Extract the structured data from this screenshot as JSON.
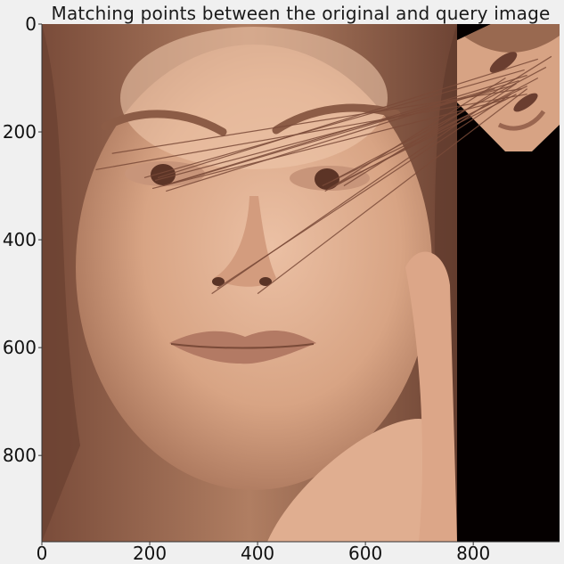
{
  "title": "Matching points between the original and query image",
  "colors": {
    "figure_background": "#f0f0f0",
    "skin_light": "#e8b89a",
    "skin_mid": "#c99274",
    "skin_dark": "#8a5a44",
    "hair_dark": "#6e4434",
    "query_background": "#050000",
    "match_line": "#7a4a38"
  },
  "axes": {
    "x_range": [
      0,
      960
    ],
    "y_range": [
      960,
      0
    ],
    "x_ticks": [
      "0",
      "200",
      "400",
      "600",
      "800"
    ],
    "y_ticks": [
      "0",
      "200",
      "400",
      "600",
      "800"
    ],
    "x_tick_values": [
      0,
      200,
      400,
      600,
      800
    ],
    "y_tick_values": [
      0,
      200,
      400,
      600,
      800
    ]
  },
  "images": {
    "original": {
      "x_range": [
        0,
        768
      ],
      "y_range": [
        0,
        960
      ]
    },
    "query": {
      "x_range": [
        768,
        960
      ],
      "y_range": [
        0,
        960
      ]
    }
  },
  "matches": [
    {
      "from": [
        210,
        290
      ],
      "to": [
        870,
        115
      ]
    },
    {
      "from": [
        225,
        300
      ],
      "to": [
        885,
        105
      ]
    },
    {
      "from": [
        240,
        295
      ],
      "to": [
        900,
        95
      ]
    },
    {
      "from": [
        205,
        305
      ],
      "to": [
        860,
        140
      ]
    },
    {
      "from": [
        230,
        310
      ],
      "to": [
        840,
        120
      ]
    },
    {
      "from": [
        190,
        285
      ],
      "to": [
        895,
        85
      ]
    },
    {
      "from": [
        215,
        285
      ],
      "to": [
        920,
        65
      ]
    },
    {
      "from": [
        520,
        300
      ],
      "to": [
        900,
        115
      ]
    },
    {
      "from": [
        535,
        305
      ],
      "to": [
        920,
        100
      ]
    },
    {
      "from": [
        550,
        295
      ],
      "to": [
        880,
        130
      ]
    },
    {
      "from": [
        540,
        290
      ],
      "to": [
        935,
        80
      ]
    },
    {
      "from": [
        525,
        310
      ],
      "to": [
        860,
        100
      ]
    },
    {
      "from": [
        560,
        300
      ],
      "to": [
        945,
        60
      ]
    },
    {
      "from": [
        400,
        500
      ],
      "to": [
        900,
        120
      ]
    },
    {
      "from": [
        315,
        500
      ],
      "to": [
        880,
        110
      ]
    },
    {
      "from": [
        325,
        490
      ],
      "to": [
        870,
        130
      ]
    },
    {
      "from": [
        130,
        240
      ],
      "to": [
        890,
        120
      ]
    },
    {
      "from": [
        100,
        270
      ],
      "to": [
        900,
        130
      ]
    }
  ]
}
